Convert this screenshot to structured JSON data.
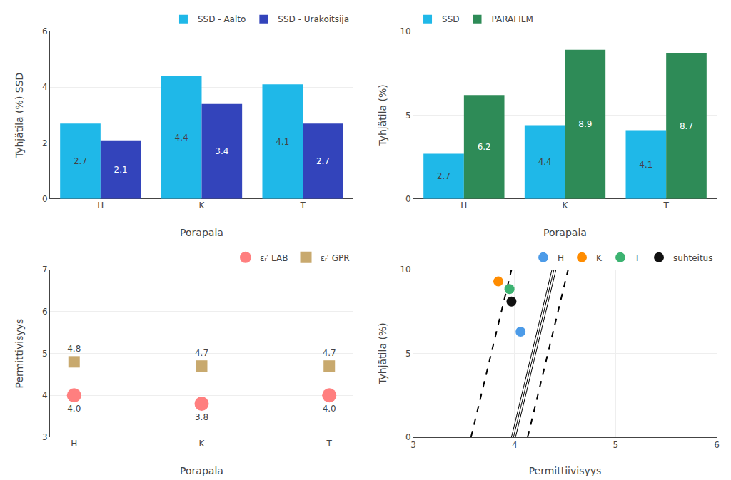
{
  "chart_data": [
    {
      "type": "bar",
      "categories": [
        "H",
        "K",
        "T"
      ],
      "series": [
        {
          "name": "SSD - Aalto",
          "color": "#1FB8E8",
          "values": [
            2.7,
            4.4,
            4.1
          ]
        },
        {
          "name": "SSD - Urakoitsija",
          "color": "#3344BB",
          "values": [
            2.1,
            3.4,
            2.7
          ]
        }
      ],
      "xlabel": "Porapala",
      "ylabel": "Tyhjätila (%) SSD",
      "ylim": [
        0,
        6
      ],
      "yticks": [
        0,
        2,
        4,
        6
      ],
      "grid": "y",
      "legend": "upper right",
      "data_labels": true
    },
    {
      "type": "bar",
      "categories": [
        "H",
        "K",
        "T"
      ],
      "series": [
        {
          "name": "SSD",
          "color": "#1FB8E8",
          "values": [
            2.7,
            4.4,
            4.1
          ]
        },
        {
          "name": "PARAFILM",
          "color": "#2E8B57",
          "values": [
            6.2,
            8.9,
            8.7
          ]
        }
      ],
      "xlabel": "Porapala",
      "ylabel": "Tyhjätila (%)",
      "ylim": [
        0,
        10
      ],
      "yticks": [
        0,
        5,
        10
      ],
      "grid": "y",
      "legend": "upper left",
      "data_labels": true
    },
    {
      "type": "scatter",
      "categories": [
        "H",
        "K",
        "T"
      ],
      "series": [
        {
          "name": "εᵣ′ LAB",
          "color": "#FF7F7F",
          "marker": "circle",
          "values": [
            4.0,
            3.8,
            4.0
          ],
          "value_labels": [
            "4.0",
            "3.8",
            "4.0"
          ]
        },
        {
          "name": "εᵣ′ GPR",
          "color": "#C8A96E",
          "marker": "square",
          "values": [
            4.8,
            4.7,
            4.7
          ]
        }
      ],
      "xlabel": "Porapala",
      "ylabel": "Permittivisyys",
      "ylim": [
        3,
        7
      ],
      "yticks": [
        3,
        4,
        5,
        6,
        7
      ],
      "grid": "y",
      "legend": "upper right",
      "data_labels": true
    },
    {
      "type": "scatter",
      "series": [
        {
          "type": "line",
          "line_style": "solid",
          "color": "#000000",
          "x": [
            3.97,
            4.37
          ],
          "values": [
            0,
            10
          ]
        },
        {
          "type": "line",
          "line_style": "solid",
          "color": "#000000",
          "x": [
            3.99,
            4.39
          ],
          "values": [
            0,
            10
          ]
        },
        {
          "type": "line",
          "line_style": "solid",
          "color": "#000000",
          "x": [
            4.01,
            4.41
          ],
          "values": [
            0,
            10
          ]
        },
        {
          "type": "line",
          "line_style": "dashed",
          "color": "#000000",
          "x": [
            3.57,
            3.97
          ],
          "values": [
            0,
            10
          ]
        },
        {
          "type": "line",
          "line_style": "dashed",
          "color": "#000000",
          "x": [
            4.13,
            4.53
          ],
          "values": [
            0,
            10
          ]
        },
        {
          "name": "H",
          "type": "scatter",
          "marker": "circle",
          "color": "#4C9BE8",
          "x": [
            4.06
          ],
          "values": [
            6.3
          ]
        },
        {
          "name": "K",
          "type": "scatter",
          "marker": "circle",
          "color": "#FF8C00",
          "x": [
            3.84
          ],
          "values": [
            9.3
          ]
        },
        {
          "name": "T",
          "type": "scatter",
          "marker": "circle",
          "color": "#3CB371",
          "x": [
            3.95
          ],
          "values": [
            8.85
          ]
        },
        {
          "name": "suhteitus",
          "type": "scatter",
          "marker": "circle",
          "color": "#111111",
          "x": [
            3.97
          ],
          "values": [
            8.1
          ]
        }
      ],
      "xlabel": "Permittiivisyys",
      "ylabel": "Tyhjätila (%)",
      "xlim": [
        3,
        6
      ],
      "xticks": [
        3,
        4,
        5,
        6
      ],
      "ylim": [
        0,
        10
      ],
      "yticks": [
        0,
        5,
        10
      ],
      "grid": true,
      "legend": "upper right"
    }
  ]
}
